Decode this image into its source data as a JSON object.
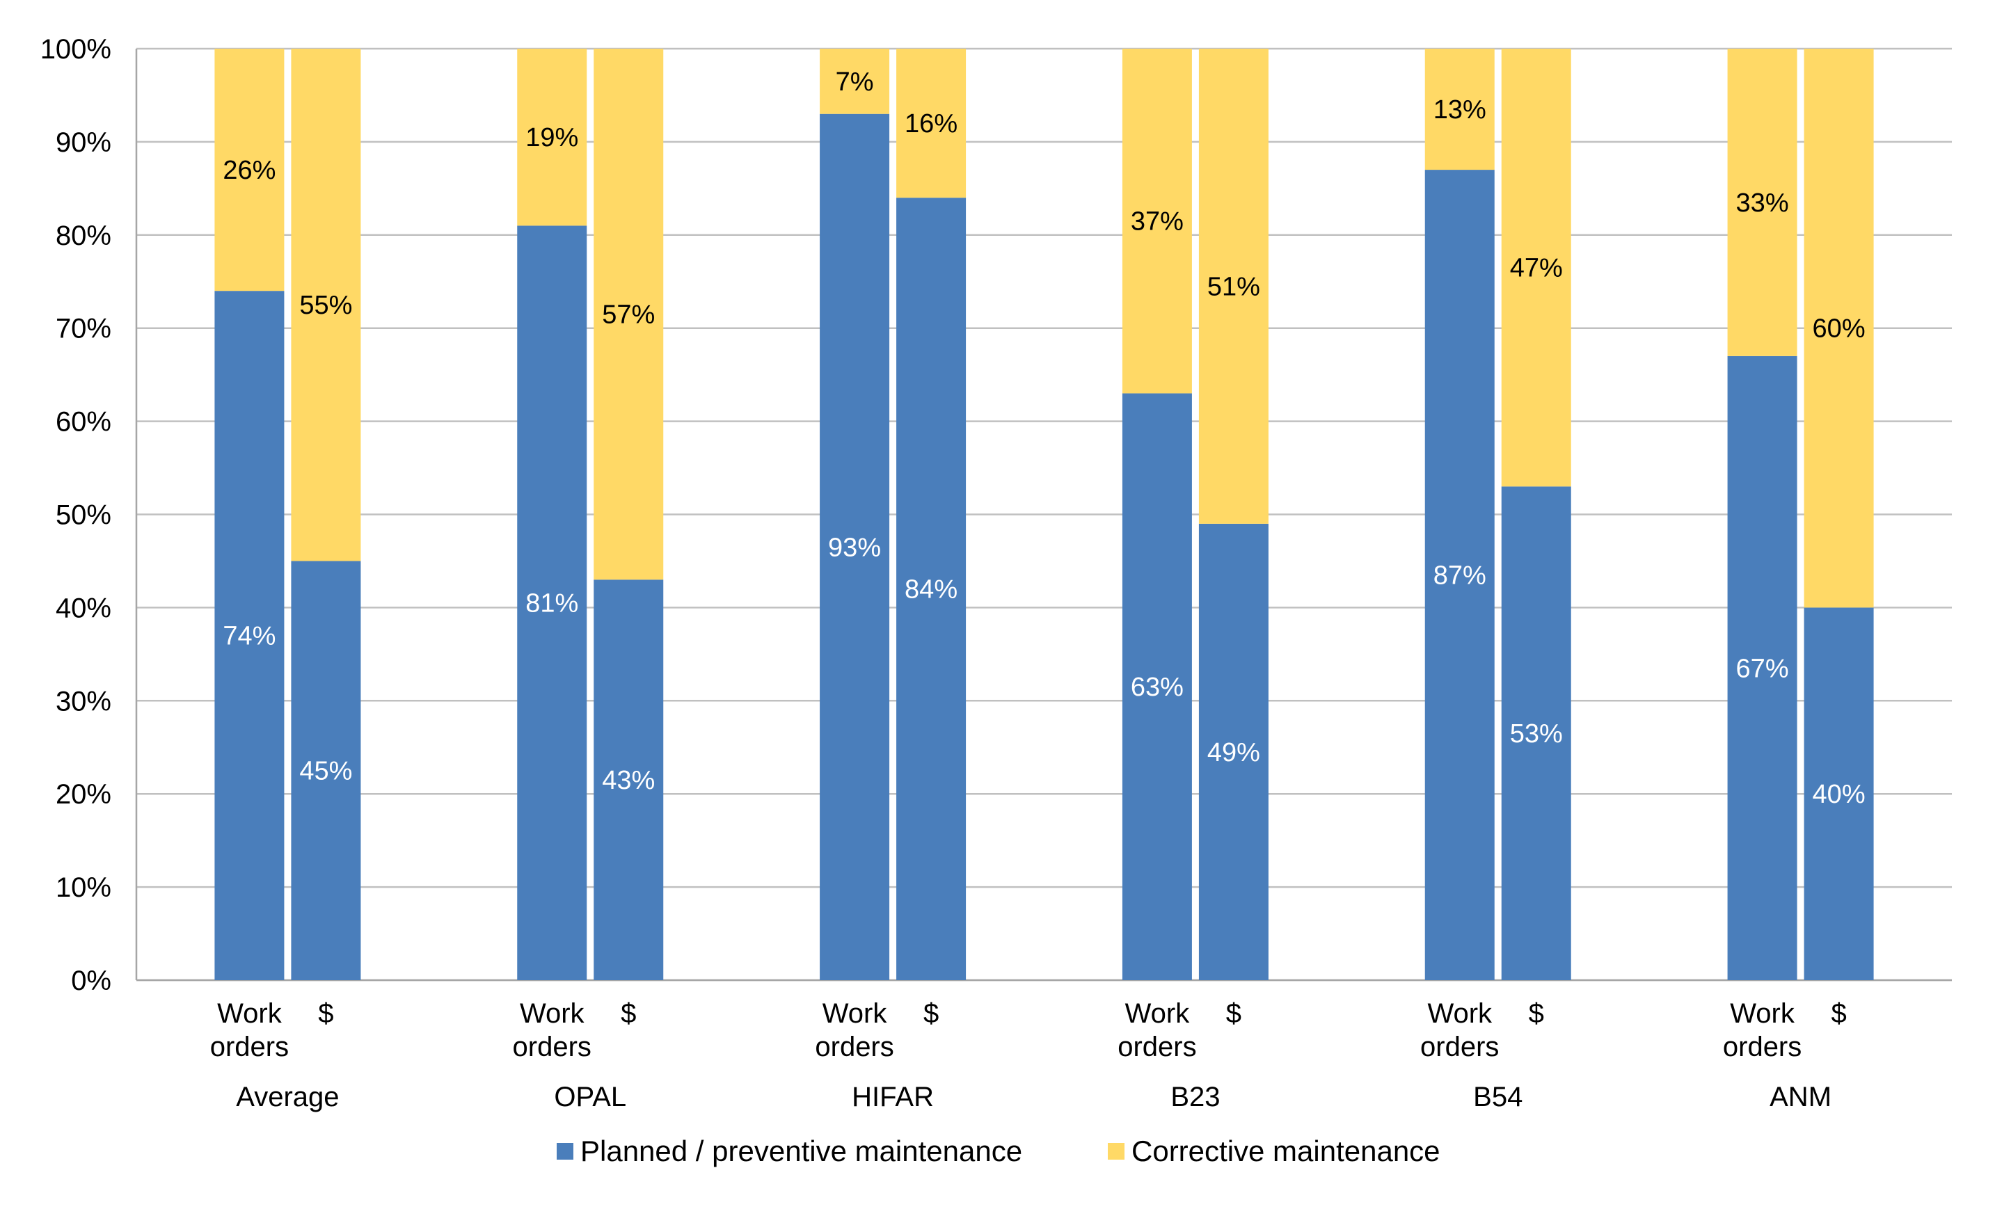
{
  "chart_data": {
    "type": "bar",
    "stacked": true,
    "percent_stacked": true,
    "ylim": [
      0,
      100
    ],
    "y_ticks": [
      "0%",
      "10%",
      "20%",
      "30%",
      "40%",
      "50%",
      "60%",
      "70%",
      "80%",
      "90%",
      "100%"
    ],
    "grid": true,
    "legend_position": "bottom",
    "sub_labels": [
      "Work orders",
      "$"
    ],
    "groups": [
      {
        "name": "Average",
        "bars": [
          {
            "planned": 74,
            "corrective": 26
          },
          {
            "planned": 45,
            "corrective": 55
          }
        ]
      },
      {
        "name": "OPAL",
        "bars": [
          {
            "planned": 81,
            "corrective": 19
          },
          {
            "planned": 43,
            "corrective": 57
          }
        ]
      },
      {
        "name": "HIFAR",
        "bars": [
          {
            "planned": 93,
            "corrective": 7
          },
          {
            "planned": 84,
            "corrective": 16
          }
        ]
      },
      {
        "name": "B23",
        "bars": [
          {
            "planned": 63,
            "corrective": 37
          },
          {
            "planned": 49,
            "corrective": 51
          }
        ]
      },
      {
        "name": "B54",
        "bars": [
          {
            "planned": 87,
            "corrective": 13
          },
          {
            "planned": 53,
            "corrective": 47
          }
        ]
      },
      {
        "name": "ANM",
        "bars": [
          {
            "planned": 67,
            "corrective": 33
          },
          {
            "planned": 40,
            "corrective": 60
          }
        ]
      }
    ],
    "series": [
      {
        "key": "planned",
        "name": "Planned / preventive maintenance",
        "color": "#4a7ebb",
        "label_color": "#ffffff"
      },
      {
        "key": "corrective",
        "name": "Corrective maintenance",
        "color": "#ffd966",
        "label_color": "#000000"
      }
    ]
  }
}
